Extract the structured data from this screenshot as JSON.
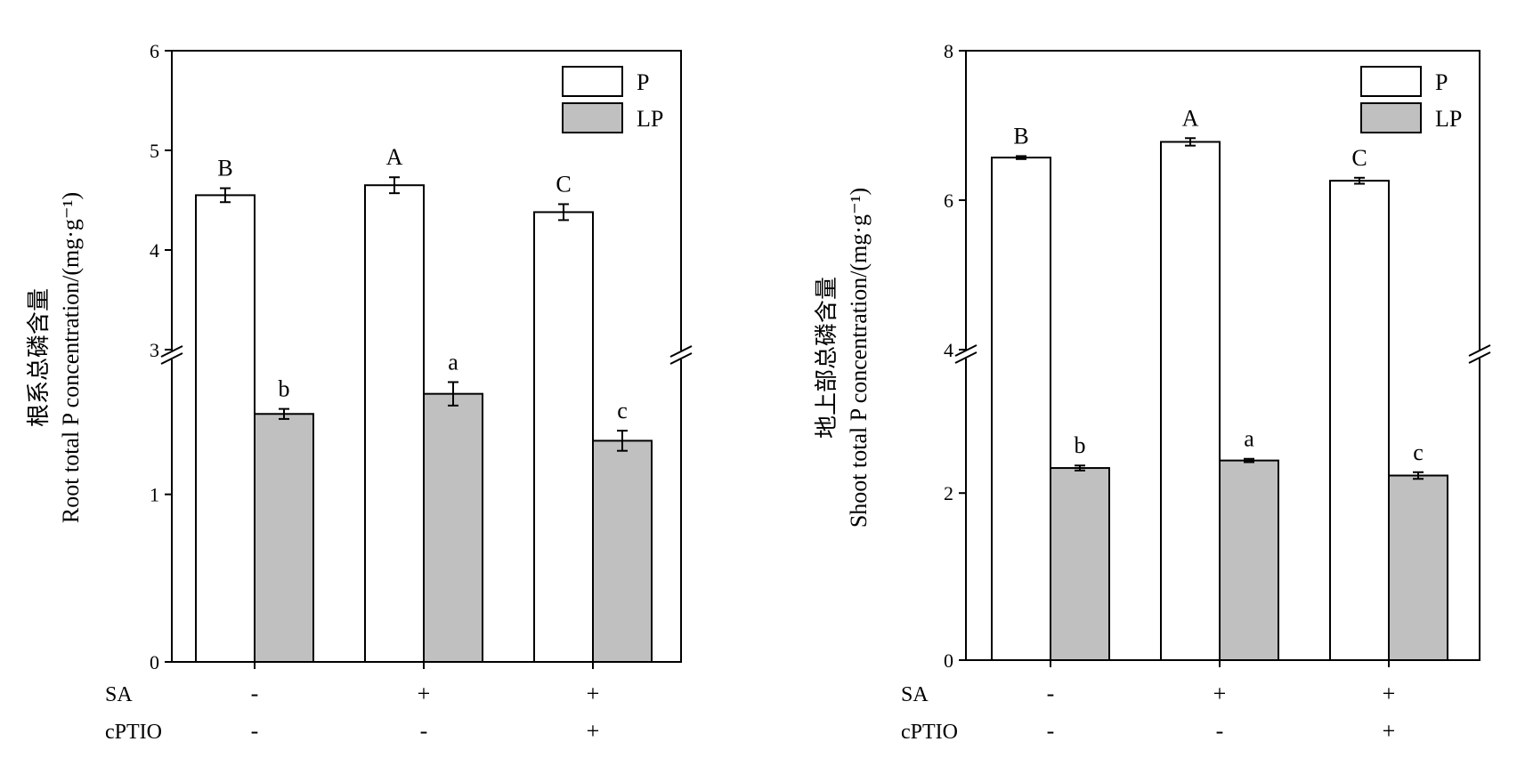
{
  "legend": {
    "p": "P",
    "lp": "LP"
  },
  "factors": [
    {
      "name": "SA",
      "values": [
        "-",
        "+",
        "+"
      ]
    },
    {
      "name": "cPTIO",
      "values": [
        "-",
        "-",
        "+"
      ]
    }
  ],
  "colors": {
    "p_fill": "#ffffff",
    "lp_fill": "#c0c0c0",
    "stroke": "#000000"
  },
  "chart_data": [
    {
      "type": "bar",
      "ylabel_cn": "根系总磷含量",
      "ylabel": "Root total P concentration/(mg·g⁻¹)",
      "ylabel_superscript": "−1",
      "y_axis_break": true,
      "yticks_lower": [
        0,
        1
      ],
      "yticks_upper": [
        3,
        4,
        5,
        6
      ],
      "ylim_lower": [
        0,
        1.8
      ],
      "ylim_upper": [
        3,
        6
      ],
      "series": [
        {
          "name": "P",
          "values": [
            4.55,
            4.65,
            4.38
          ],
          "errors": [
            0.07,
            0.08,
            0.08
          ],
          "letters": [
            "B",
            "A",
            "C"
          ]
        },
        {
          "name": "LP",
          "values": [
            1.48,
            1.6,
            1.32
          ],
          "errors": [
            0.03,
            0.07,
            0.06
          ],
          "letters": [
            "b",
            "a",
            "c"
          ]
        }
      ]
    },
    {
      "type": "bar",
      "ylabel_cn": "地上部总磷含量",
      "ylabel": "Shoot total P concentration/(mg·g⁻¹)",
      "ylabel_superscript": "−1",
      "y_axis_break": true,
      "yticks_lower": [
        0,
        2
      ],
      "yticks_upper": [
        4,
        6,
        8
      ],
      "ylim_lower": [
        0,
        3.6
      ],
      "ylim_upper": [
        4,
        8
      ],
      "series": [
        {
          "name": "P",
          "values": [
            6.57,
            6.78,
            6.26
          ],
          "errors": [
            0.02,
            0.05,
            0.04
          ],
          "letters": [
            "B",
            "A",
            "C"
          ]
        },
        {
          "name": "LP",
          "values": [
            2.3,
            2.39,
            2.21
          ],
          "errors": [
            0.03,
            0.02,
            0.04
          ],
          "letters": [
            "b",
            "a",
            "c"
          ]
        }
      ]
    }
  ]
}
